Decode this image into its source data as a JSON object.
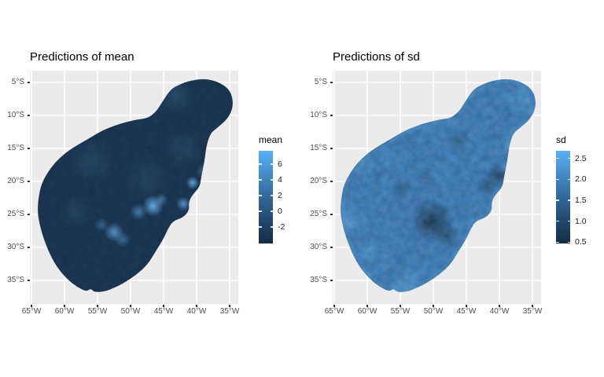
{
  "page": {
    "background": "#FFFFFF"
  },
  "chart_data": {
    "type": "heatmap",
    "subtype": "spatial-prediction-map-pair",
    "panel_style": {
      "panel_bg": "#EBEBEB",
      "grid_color": "#FFFFFF",
      "grid_on": true,
      "tick_color": "#333333",
      "axis_text_color": "#4D4D4D"
    },
    "palette": {
      "low": "#132B43",
      "mid": "#31689B",
      "high": "#56B1F7"
    },
    "axis_ranges": {
      "lon": [
        -65.3,
        -33.7
      ],
      "lat": [
        -38.5,
        -3.2
      ]
    },
    "region_outline_lonlat": [
      [
        -43.2,
        -5.6
      ],
      [
        -41.4,
        -4.8
      ],
      [
        -38.8,
        -4.4
      ],
      [
        -36.7,
        -4.9
      ],
      [
        -35.1,
        -6.0
      ],
      [
        -34.5,
        -7.5
      ],
      [
        -34.6,
        -9.2
      ],
      [
        -35.5,
        -10.7
      ],
      [
        -36.9,
        -11.9
      ],
      [
        -37.9,
        -12.7
      ],
      [
        -38.5,
        -14.5
      ],
      [
        -38.8,
        -16.9
      ],
      [
        -39.3,
        -19.3
      ],
      [
        -39.5,
        -20.8
      ],
      [
        -40.6,
        -22.0
      ],
      [
        -41.2,
        -23.1
      ],
      [
        -41.1,
        -24.4
      ],
      [
        -42.1,
        -25.5
      ],
      [
        -43.6,
        -26.0
      ],
      [
        -44.4,
        -27.3
      ],
      [
        -44.9,
        -28.5
      ],
      [
        -46.2,
        -30.6
      ],
      [
        -47.4,
        -32.6
      ],
      [
        -49.2,
        -34.2
      ],
      [
        -51.0,
        -35.4
      ],
      [
        -52.4,
        -36.1
      ],
      [
        -53.9,
        -36.7
      ],
      [
        -55.5,
        -36.8
      ],
      [
        -56.0,
        -36.2
      ],
      [
        -56.7,
        -36.7
      ],
      [
        -58.1,
        -36.0
      ],
      [
        -59.5,
        -34.9
      ],
      [
        -61.0,
        -33.2
      ],
      [
        -62.1,
        -31.3
      ],
      [
        -63.1,
        -28.9
      ],
      [
        -63.8,
        -26.4
      ],
      [
        -64.1,
        -24.4
      ],
      [
        -63.9,
        -22.3
      ],
      [
        -63.5,
        -20.4
      ],
      [
        -62.6,
        -18.7
      ],
      [
        -61.4,
        -17.1
      ],
      [
        -59.9,
        -15.7
      ],
      [
        -58.1,
        -14.5
      ],
      [
        -56.3,
        -13.5
      ],
      [
        -54.5,
        -12.4
      ],
      [
        -52.6,
        -11.6
      ],
      [
        -50.7,
        -11.0
      ],
      [
        -48.9,
        -10.6
      ],
      [
        -47.4,
        -10.4
      ],
      [
        -46.2,
        -9.5
      ],
      [
        -45.4,
        -8.3
      ],
      [
        -44.6,
        -7.0
      ],
      [
        -43.9,
        -6.1
      ]
    ],
    "charts": [
      {
        "title": "Predictions of mean",
        "legend": {
          "title": "mean",
          "range_top": 7.7,
          "range_bottom": -4.1,
          "ticks": [
            {
              "label": "6",
              "value": 6
            },
            {
              "label": "4",
              "value": 4
            },
            {
              "label": "2",
              "value": 2
            },
            {
              "label": "0",
              "value": 0
            },
            {
              "label": "-2",
              "value": -2
            }
          ]
        },
        "x_axis": {
          "ticks": [
            {
              "label": "65°W",
              "lon": -65
            },
            {
              "label": "60°W",
              "lon": -60
            },
            {
              "label": "55°W",
              "lon": -55
            },
            {
              "label": "50°W",
              "lon": -50
            },
            {
              "label": "45°W",
              "lon": -45
            },
            {
              "label": "40°W",
              "lon": -40
            },
            {
              "label": "35°W",
              "lon": -35
            }
          ]
        },
        "y_axis": {
          "ticks": [
            {
              "label": "5°S",
              "lat": -5
            },
            {
              "label": "10°S",
              "lat": -10
            },
            {
              "label": "15°S",
              "lat": -15
            },
            {
              "label": "20°S",
              "lat": -20
            },
            {
              "label": "25°S",
              "lat": -25
            },
            {
              "label": "30°S",
              "lat": -30
            },
            {
              "label": "35°S",
              "lat": -35
            }
          ]
        },
        "field": {
          "base_color": "#16324F",
          "spot_light_color": "#70BDFB",
          "spot_dark_color": "#112A42",
          "spots": [
            {
              "tone": "light",
              "lon": -46.6,
              "lat": -23.7,
              "radius_deg": 1.6,
              "intensity": 0.9
            },
            {
              "tone": "light",
              "lon": -48.8,
              "lat": -24.6,
              "radius_deg": 1.3,
              "intensity": 0.5
            },
            {
              "tone": "light",
              "lon": -45.3,
              "lat": -22.8,
              "radius_deg": 1.0,
              "intensity": 0.45
            },
            {
              "tone": "light",
              "lon": -42.0,
              "lat": -23.4,
              "radius_deg": 1.1,
              "intensity": 0.7
            },
            {
              "tone": "light",
              "lon": -40.6,
              "lat": -20.2,
              "radius_deg": 1.0,
              "intensity": 0.8
            },
            {
              "tone": "light",
              "lon": -52.5,
              "lat": -27.7,
              "radius_deg": 1.5,
              "intensity": 0.7
            },
            {
              "tone": "light",
              "lon": -51.2,
              "lat": -28.8,
              "radius_deg": 1.2,
              "intensity": 0.4
            },
            {
              "tone": "light",
              "lon": -54.4,
              "lat": -26.6,
              "radius_deg": 1.1,
              "intensity": 0.35
            },
            {
              "tone": "light",
              "lon": -38.8,
              "lat": -18.4,
              "radius_deg": 1.3,
              "intensity": 0.35
            },
            {
              "tone": "light",
              "lon": -37.6,
              "lat": -16.3,
              "radius_deg": 1.1,
              "intensity": 0.3
            },
            {
              "tone": "light",
              "lon": -43.2,
              "lat": -7.0,
              "radius_deg": 3.0,
              "intensity": 0.14
            },
            {
              "tone": "light",
              "lon": -55.9,
              "lat": -16.9,
              "radius_deg": 3.5,
              "intensity": 0.12
            },
            {
              "tone": "light",
              "lon": -58.3,
              "lat": -24.6,
              "radius_deg": 2.5,
              "intensity": 0.1
            },
            {
              "tone": "light",
              "lon": -42.0,
              "lat": -15.0,
              "radius_deg": 3.0,
              "intensity": 0.12
            },
            {
              "tone": "light",
              "lon": -47.5,
              "lat": -19.5,
              "radius_deg": 4.0,
              "intensity": 0.09
            }
          ],
          "grain": [
            {
              "tone": "dark",
              "base_frequency": 0.12,
              "octaves": 3,
              "seed": 5,
              "opacity": 0.06
            },
            {
              "tone": "light",
              "base_frequency": 0.12,
              "octaves": 3,
              "seed": 9,
              "opacity": 0.05
            }
          ],
          "rim": null
        }
      },
      {
        "title": "Predictions of sd",
        "legend": {
          "title": "sd",
          "range_top": 2.68,
          "range_bottom": 0.47,
          "ticks": [
            {
              "label": "2.5",
              "value": 2.5
            },
            {
              "label": "2.0",
              "value": 2.0
            },
            {
              "label": "1.5",
              "value": 1.5
            },
            {
              "label": "1.0",
              "value": 1.0
            },
            {
              "label": "0.5",
              "value": 0.5
            }
          ]
        },
        "x_axis": {
          "ticks": [
            {
              "label": "65°W",
              "lon": -65
            },
            {
              "label": "60°W",
              "lon": -60
            },
            {
              "label": "55°W",
              "lon": -55
            },
            {
              "label": "50°W",
              "lon": -50
            },
            {
              "label": "45°W",
              "lon": -45
            },
            {
              "label": "40°W",
              "lon": -40
            },
            {
              "label": "35°W",
              "lon": -35
            }
          ]
        },
        "y_axis": {
          "ticks": [
            {
              "label": "5°S",
              "lat": -5
            },
            {
              "label": "10°S",
              "lat": -10
            },
            {
              "label": "15°S",
              "lat": -15
            },
            {
              "label": "20°S",
              "lat": -20
            },
            {
              "label": "25°S",
              "lat": -25
            },
            {
              "label": "30°S",
              "lat": -30
            },
            {
              "label": "35°S",
              "lat": -35
            }
          ]
        },
        "field": {
          "base_color": "#3D86C9",
          "spot_light_color": "#6FC0FF",
          "spot_dark_color": "#112A42",
          "spots": [
            {
              "tone": "dark",
              "lon": -50.2,
              "lat": -26.1,
              "radius_deg": 3.4,
              "intensity": 0.85
            },
            {
              "tone": "dark",
              "lon": -47.9,
              "lat": -28.4,
              "radius_deg": 2.0,
              "intensity": 0.5
            },
            {
              "tone": "dark",
              "lon": -40.2,
              "lat": -19.3,
              "radius_deg": 1.9,
              "intensity": 0.65
            },
            {
              "tone": "dark",
              "lon": -41.9,
              "lat": -20.9,
              "radius_deg": 1.5,
              "intensity": 0.5
            },
            {
              "tone": "dark",
              "lon": -37.8,
              "lat": -16.5,
              "radius_deg": 1.8,
              "intensity": 0.4
            },
            {
              "tone": "dark",
              "lon": -54.8,
              "lat": -21.1,
              "radius_deg": 1.7,
              "intensity": 0.3
            },
            {
              "tone": "dark",
              "lon": -46.2,
              "lat": -13.7,
              "radius_deg": 1.7,
              "intensity": 0.3
            },
            {
              "tone": "dark",
              "lon": -51.2,
              "lat": -19.3,
              "radius_deg": 1.5,
              "intensity": 0.25
            },
            {
              "tone": "dark",
              "lon": -58.3,
              "lat": -18.7,
              "radius_deg": 1.4,
              "intensity": 0.2
            },
            {
              "tone": "dark",
              "lon": -45.8,
              "lat": -33.6,
              "radius_deg": 1.6,
              "intensity": 0.25
            },
            {
              "tone": "light",
              "lon": -63.0,
              "lat": -25.8,
              "radius_deg": 3.0,
              "intensity": 0.4
            },
            {
              "tone": "light",
              "lon": -36.8,
              "lat": -7.8,
              "radius_deg": 2.4,
              "intensity": 0.35
            },
            {
              "tone": "light",
              "lon": -54.2,
              "lat": -35.2,
              "radius_deg": 2.6,
              "intensity": 0.35
            },
            {
              "tone": "light",
              "lon": -38.0,
              "lat": -13.8,
              "radius_deg": 1.8,
              "intensity": 0.3
            },
            {
              "tone": "light",
              "lon": -60.5,
              "lat": -17.5,
              "radius_deg": 2.2,
              "intensity": 0.3
            },
            {
              "tone": "light",
              "lon": -48.8,
              "lat": -7.5,
              "radius_deg": 2.4,
              "intensity": 0.3
            },
            {
              "tone": "light",
              "lon": -44.0,
              "lat": -30.0,
              "radius_deg": 2.0,
              "intensity": 0.25
            },
            {
              "tone": "light",
              "lon": -59.5,
              "lat": -30.5,
              "radius_deg": 2.2,
              "intensity": 0.3
            }
          ],
          "grain": [
            {
              "tone": "dark",
              "base_frequency": 0.05,
              "octaves": 2,
              "seed": 3,
              "opacity": 0.18
            },
            {
              "tone": "dark",
              "base_frequency": 0.13,
              "octaves": 3,
              "seed": 7,
              "opacity": 0.18
            },
            {
              "tone": "light",
              "base_frequency": 0.11,
              "octaves": 3,
              "seed": 12,
              "opacity": 0.16
            }
          ],
          "rim": {
            "color": "#63B2F0",
            "opacity": 0.18,
            "width": 10
          }
        }
      }
    ]
  }
}
